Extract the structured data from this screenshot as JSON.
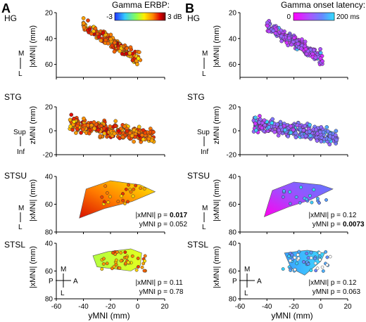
{
  "panel_labels": [
    "A",
    "B"
  ],
  "legends": {
    "erbp": {
      "title": "Gamma ERBP:",
      "min_label": "-3",
      "max_label": "3 dB",
      "colors": [
        "#2233ff",
        "#33ccff",
        "#88ff55",
        "#ffee00",
        "#ff8800",
        "#dd0000",
        "#700000"
      ]
    },
    "onset": {
      "title": "Gamma onset latency:",
      "min_label": "0",
      "max_label": "200 ms",
      "colors": [
        "#ff00ff",
        "#aa55ff",
        "#6688ff",
        "#33ddff"
      ]
    }
  },
  "row_labels": [
    "HG",
    "STG",
    "STSU",
    "STSL"
  ],
  "y_axis_labels": [
    "|xMNI| (mm)",
    "zMNI (mm)",
    "|xMNI| (mm)",
    "|xMNI| (mm)"
  ],
  "x_axis_label": "yMNI (mm)",
  "orientation": {
    "m": "M",
    "l": "L",
    "sup": "Sup",
    "inf": "Inf",
    "p": "P",
    "a": "A"
  },
  "stats": {
    "a_stsu": {
      "line1_prefix": "|xMNI| p =",
      "line1_value": "0.017",
      "line2_prefix": "yMNI p =",
      "line2_value": "0.052"
    },
    "a_stsl": {
      "line1_prefix": "|xMNI| p =",
      "line1_value": "0.11",
      "line2_prefix": "yMNI p =",
      "line2_value": "0.78"
    },
    "b_stsu": {
      "line1_prefix": "|xMNI| p =",
      "line1_value": "0.12",
      "line2_prefix": "yMNI p =",
      "line2_value": "0.0073"
    },
    "b_stsl": {
      "line1_prefix": "|xMNI| p =",
      "line1_value": "0.12",
      "line2_prefix": "yMNI p =",
      "line2_value": "0.063"
    }
  },
  "chart_data": [
    {
      "panel": "A",
      "row": "HG",
      "type": "scatter",
      "xlim": [
        -60,
        20
      ],
      "ylim": [
        70,
        20
      ],
      "inverted_y": true,
      "yticks": [
        20,
        40,
        60
      ],
      "color_by": "Gamma ERBP (dB)",
      "approx_points": 190,
      "trend": "points span y from about -40 to 0 with |x| increasing from ~30 to ~60 mm; mostly red/dark red"
    },
    {
      "panel": "A",
      "row": "STG",
      "type": "scatter",
      "xlim": [
        -60,
        20
      ],
      "ylim": [
        -20,
        20
      ],
      "yticks": [
        -20,
        0,
        20
      ],
      "color_by": "Gamma ERBP (dB)",
      "approx_points": 330
    },
    {
      "panel": "A",
      "row": "STSU",
      "type": "area",
      "xlim": [
        -60,
        20
      ],
      "ylim": [
        80,
        40
      ],
      "inverted_y": true,
      "yticks": [
        40,
        60,
        80
      ],
      "color_by": "Gamma ERBP (dB)",
      "fill": "gradient red (posterior/lateral) to yellow (anterior)"
    },
    {
      "panel": "A",
      "row": "STSL",
      "type": "area",
      "xlim": [
        -60,
        20
      ],
      "ylim": [
        80,
        40
      ],
      "inverted_y": true,
      "yticks": [
        40,
        60,
        80
      ],
      "color_by": "Gamma ERBP (dB)",
      "fill": "green-yellow"
    },
    {
      "panel": "B",
      "row": "HG",
      "type": "scatter",
      "xlim": [
        -60,
        20
      ],
      "ylim": [
        70,
        20
      ],
      "inverted_y": true,
      "yticks": [
        20,
        40,
        60
      ],
      "color_by": "Gamma onset latency (ms)",
      "approx_points": 190
    },
    {
      "panel": "B",
      "row": "STG",
      "type": "scatter",
      "xlim": [
        -60,
        20
      ],
      "ylim": [
        -20,
        20
      ],
      "yticks": [
        -20,
        0,
        20
      ],
      "color_by": "Gamma onset latency (ms)",
      "approx_points": 330
    },
    {
      "panel": "B",
      "row": "STSU",
      "type": "area",
      "xlim": [
        -60,
        20
      ],
      "ylim": [
        80,
        40
      ],
      "inverted_y": true,
      "yticks": [
        40,
        60,
        80
      ],
      "color_by": "Gamma onset latency (ms)",
      "fill": "gradient magenta (posterior) to blue (anterior)"
    },
    {
      "panel": "B",
      "row": "STSL",
      "type": "area",
      "xlim": [
        -60,
        20
      ],
      "ylim": [
        80,
        40
      ],
      "inverted_y": true,
      "yticks": [
        40,
        60,
        80
      ],
      "color_by": "Gamma onset latency (ms)",
      "fill": "blue/cyan"
    }
  ],
  "x_ticks": [
    -60,
    -40,
    -20,
    0,
    20
  ]
}
